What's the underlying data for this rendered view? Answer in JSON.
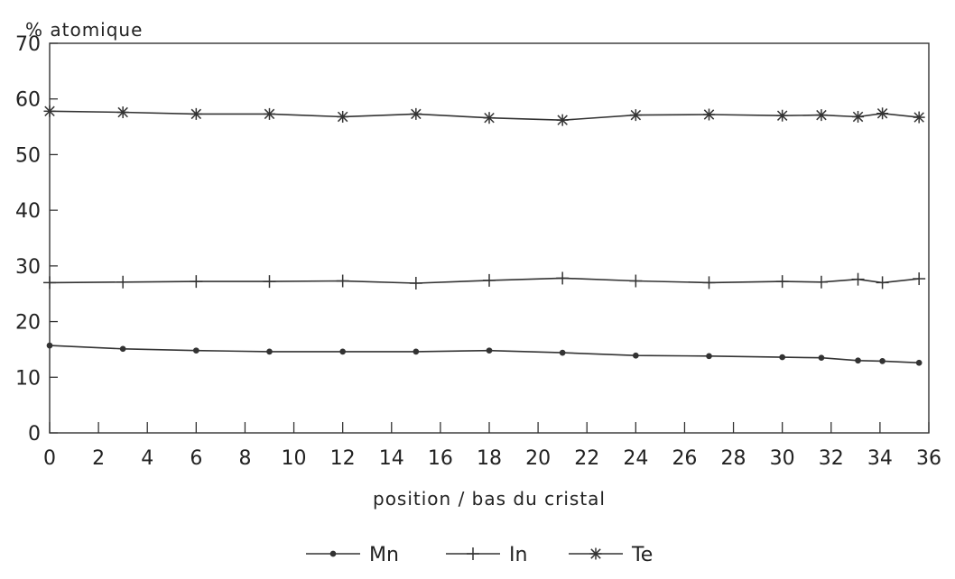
{
  "chart_data": {
    "type": "line",
    "ylabel": "% atomique",
    "xlabel": "position / bas du cristal",
    "xlim": [
      0,
      36
    ],
    "ylim": [
      0,
      70
    ],
    "x_ticks": [
      0,
      2,
      4,
      6,
      8,
      10,
      12,
      14,
      16,
      18,
      20,
      22,
      24,
      26,
      28,
      30,
      32,
      34,
      36
    ],
    "y_ticks": [
      0,
      10,
      20,
      30,
      40,
      50,
      60,
      70
    ],
    "grid": false,
    "legend_position": "bottom-center",
    "series": [
      {
        "name": "Mn",
        "marker": "dot",
        "x": [
          0,
          3,
          6,
          9,
          12,
          15,
          18,
          21,
          24,
          27,
          30,
          31.6,
          33.1,
          34.1,
          35.6
        ],
        "y": [
          15.7,
          15.1,
          14.8,
          14.6,
          14.6,
          14.6,
          14.8,
          14.4,
          13.9,
          13.8,
          13.6,
          13.5,
          13.0,
          12.9,
          12.6
        ]
      },
      {
        "name": "In",
        "marker": "plus",
        "x": [
          0,
          3,
          6,
          9,
          12,
          15,
          18,
          21,
          24,
          27,
          30,
          31.6,
          33.1,
          34.1,
          35.6
        ],
        "y": [
          27.0,
          27.1,
          27.2,
          27.2,
          27.3,
          26.9,
          27.4,
          27.8,
          27.3,
          27.0,
          27.2,
          27.1,
          27.6,
          27.0,
          27.7
        ]
      },
      {
        "name": "Te",
        "marker": "asterisk",
        "x": [
          0,
          3,
          6,
          9,
          12,
          15,
          18,
          21,
          24,
          27,
          30,
          31.6,
          33.1,
          34.1,
          35.6
        ],
        "y": [
          57.8,
          57.6,
          57.3,
          57.3,
          56.8,
          57.3,
          56.6,
          56.2,
          57.1,
          57.2,
          57.0,
          57.1,
          56.8,
          57.4,
          56.7
        ]
      }
    ]
  }
}
